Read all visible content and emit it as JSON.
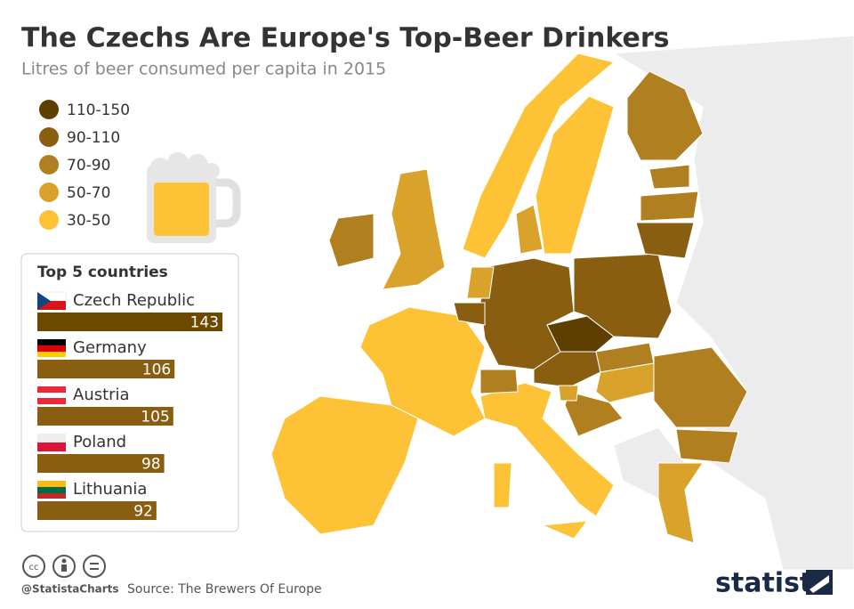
{
  "chart_data": {
    "type": "bar",
    "title": "The Czechs Are Europe's Top-Beer Drinkers",
    "subtitle": "Litres of beer consumed per capita in 2015",
    "legend": [
      {
        "label": "110-150",
        "color": "#5f3f00"
      },
      {
        "label": "90-110",
        "color": "#8a5e10"
      },
      {
        "label": "70-90",
        "color": "#b07f1f"
      },
      {
        "label": "50-70",
        "color": "#d9a32b"
      },
      {
        "label": "30-50",
        "color": "#fdc236"
      }
    ],
    "box_title": "Top 5 countries",
    "categories": [
      "Czech Republic",
      "Germany",
      "Austria",
      "Poland",
      "Lithuania"
    ],
    "values": [
      143,
      106,
      105,
      98,
      92
    ],
    "colors": [
      "#6b4a00",
      "#8a5e10",
      "#8a5e10",
      "#8a5e10",
      "#8a5e10"
    ],
    "handle": "@StatistaCharts",
    "source": "Source: The Brewers Of Europe",
    "brand": "statista"
  }
}
